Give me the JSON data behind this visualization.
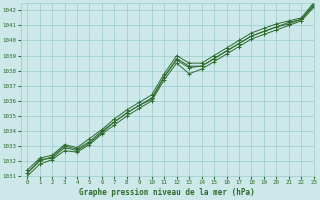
{
  "title": "Graphe pression niveau de la mer (hPa)",
  "bg_color": "#cce8e8",
  "grid_color": "#99cccc",
  "line_color": "#2d6a2d",
  "xlim": [
    -0.5,
    23
  ],
  "ylim": [
    1031,
    1042.5
  ],
  "yticks": [
    1031,
    1032,
    1033,
    1034,
    1035,
    1036,
    1037,
    1038,
    1039,
    1040,
    1041,
    1042
  ],
  "xticks": [
    0,
    1,
    2,
    3,
    4,
    5,
    6,
    7,
    8,
    9,
    10,
    11,
    12,
    13,
    14,
    15,
    16,
    17,
    18,
    19,
    20,
    21,
    22,
    23
  ],
  "series": [
    [
      1031.2,
      1032.1,
      1032.2,
      1032.9,
      1032.7,
      1033.2,
      1033.9,
      1034.6,
      1035.2,
      1035.7,
      1036.1,
      1037.6,
      1038.8,
      1038.3,
      1038.3,
      1038.8,
      1039.3,
      1039.8,
      1040.3,
      1040.6,
      1040.9,
      1041.1,
      1041.4,
      1042.4
    ],
    [
      1031.0,
      1031.8,
      1032.1,
      1032.7,
      1032.6,
      1033.1,
      1033.8,
      1034.4,
      1035.0,
      1035.5,
      1036.0,
      1037.4,
      1038.5,
      1037.8,
      1038.1,
      1038.6,
      1039.1,
      1039.6,
      1040.1,
      1040.4,
      1040.7,
      1041.0,
      1041.3,
      1042.2
    ],
    [
      1031.4,
      1032.2,
      1032.4,
      1033.1,
      1032.9,
      1033.5,
      1034.1,
      1034.8,
      1035.4,
      1035.9,
      1036.4,
      1037.8,
      1039.0,
      1038.5,
      1038.5,
      1039.0,
      1039.5,
      1040.0,
      1040.5,
      1040.8,
      1041.1,
      1041.3,
      1041.5,
      1042.5
    ],
    [
      1031.2,
      1032.0,
      1032.3,
      1033.0,
      1032.8,
      1033.3,
      1034.0,
      1034.6,
      1035.2,
      1035.7,
      1036.2,
      1037.6,
      1038.7,
      1038.2,
      1038.3,
      1038.8,
      1039.3,
      1039.8,
      1040.3,
      1040.6,
      1040.9,
      1041.2,
      1041.4,
      1042.3
    ]
  ]
}
